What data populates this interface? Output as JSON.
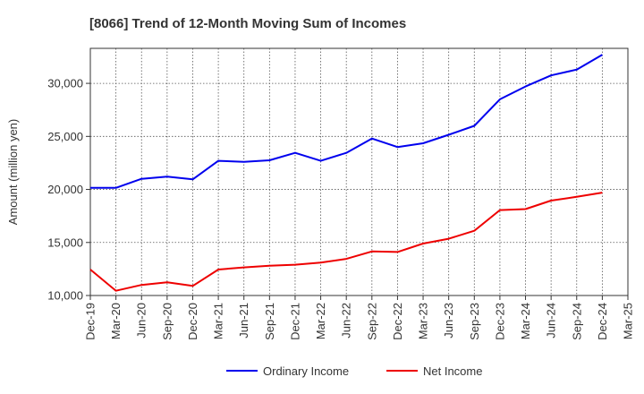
{
  "chart_data": {
    "type": "line",
    "title": "[8066]  Trend of 12-Month Moving Sum of Incomes",
    "xlabel": "",
    "ylabel": "Amount (million yen)",
    "ylim": [
      10000,
      33300
    ],
    "yticks": [
      10000,
      15000,
      20000,
      25000,
      30000
    ],
    "ytick_labels": [
      "10,000",
      "15,000",
      "20,000",
      "25,000",
      "30,000"
    ],
    "grid": true,
    "legend_position": "bottom-center",
    "categories": [
      "Dec-19",
      "Mar-20",
      "Jun-20",
      "Sep-20",
      "Dec-20",
      "Mar-21",
      "Jun-21",
      "Sep-21",
      "Dec-21",
      "Mar-22",
      "Jun-22",
      "Sep-22",
      "Dec-22",
      "Mar-23",
      "Jun-23",
      "Sep-23",
      "Dec-23",
      "Mar-24",
      "Jun-24",
      "Sep-24",
      "Dec-24",
      "Mar-25"
    ],
    "series": [
      {
        "name": "Ordinary Income",
        "color": "#0000ee",
        "values": [
          20150,
          20150,
          21000,
          21200,
          20950,
          22700,
          22600,
          22750,
          23450,
          22700,
          23450,
          24800,
          24000,
          24350,
          25150,
          26000,
          28500,
          29700,
          30750,
          31300,
          32700,
          null
        ]
      },
      {
        "name": "Net Income",
        "color": "#ee0000",
        "values": [
          12450,
          10450,
          11000,
          11250,
          10900,
          12450,
          12650,
          12800,
          12900,
          13100,
          13450,
          14150,
          14100,
          14900,
          15350,
          16100,
          18050,
          18150,
          18950,
          19300,
          19700,
          null
        ]
      }
    ]
  }
}
